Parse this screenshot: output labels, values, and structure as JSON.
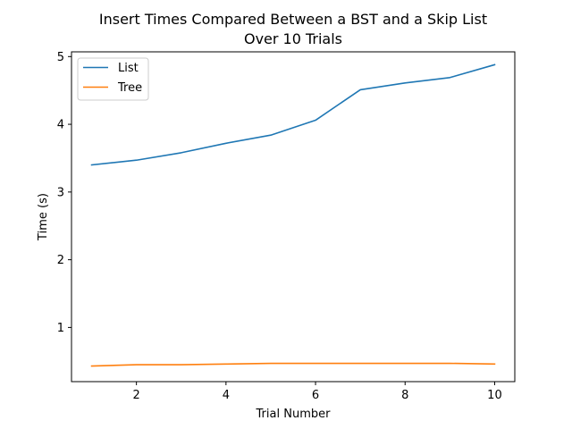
{
  "chart_data": {
    "type": "line",
    "title": [
      "Insert Times Compared Between a BST and a Skip List",
      "Over 10 Trials"
    ],
    "xlabel": "Trial Number",
    "ylabel": "Time (s)",
    "xlim": [
      0.55,
      10.45
    ],
    "ylim": [
      0.2,
      5.07
    ],
    "xticks": [
      2,
      4,
      6,
      8,
      10
    ],
    "yticks": [
      1,
      2,
      3,
      4,
      5
    ],
    "grid": false,
    "legend_position": "top-left",
    "x": [
      1,
      2,
      3,
      4,
      5,
      6,
      7,
      8,
      9,
      10
    ],
    "series": [
      {
        "name": "List",
        "color": "#1f77b4",
        "values": [
          3.4,
          3.47,
          3.58,
          3.72,
          3.84,
          4.06,
          4.51,
          4.61,
          4.69,
          4.88
        ]
      },
      {
        "name": "Tree",
        "color": "#ff7f0e",
        "values": [
          0.43,
          0.45,
          0.45,
          0.46,
          0.47,
          0.47,
          0.47,
          0.47,
          0.47,
          0.46
        ]
      }
    ]
  }
}
